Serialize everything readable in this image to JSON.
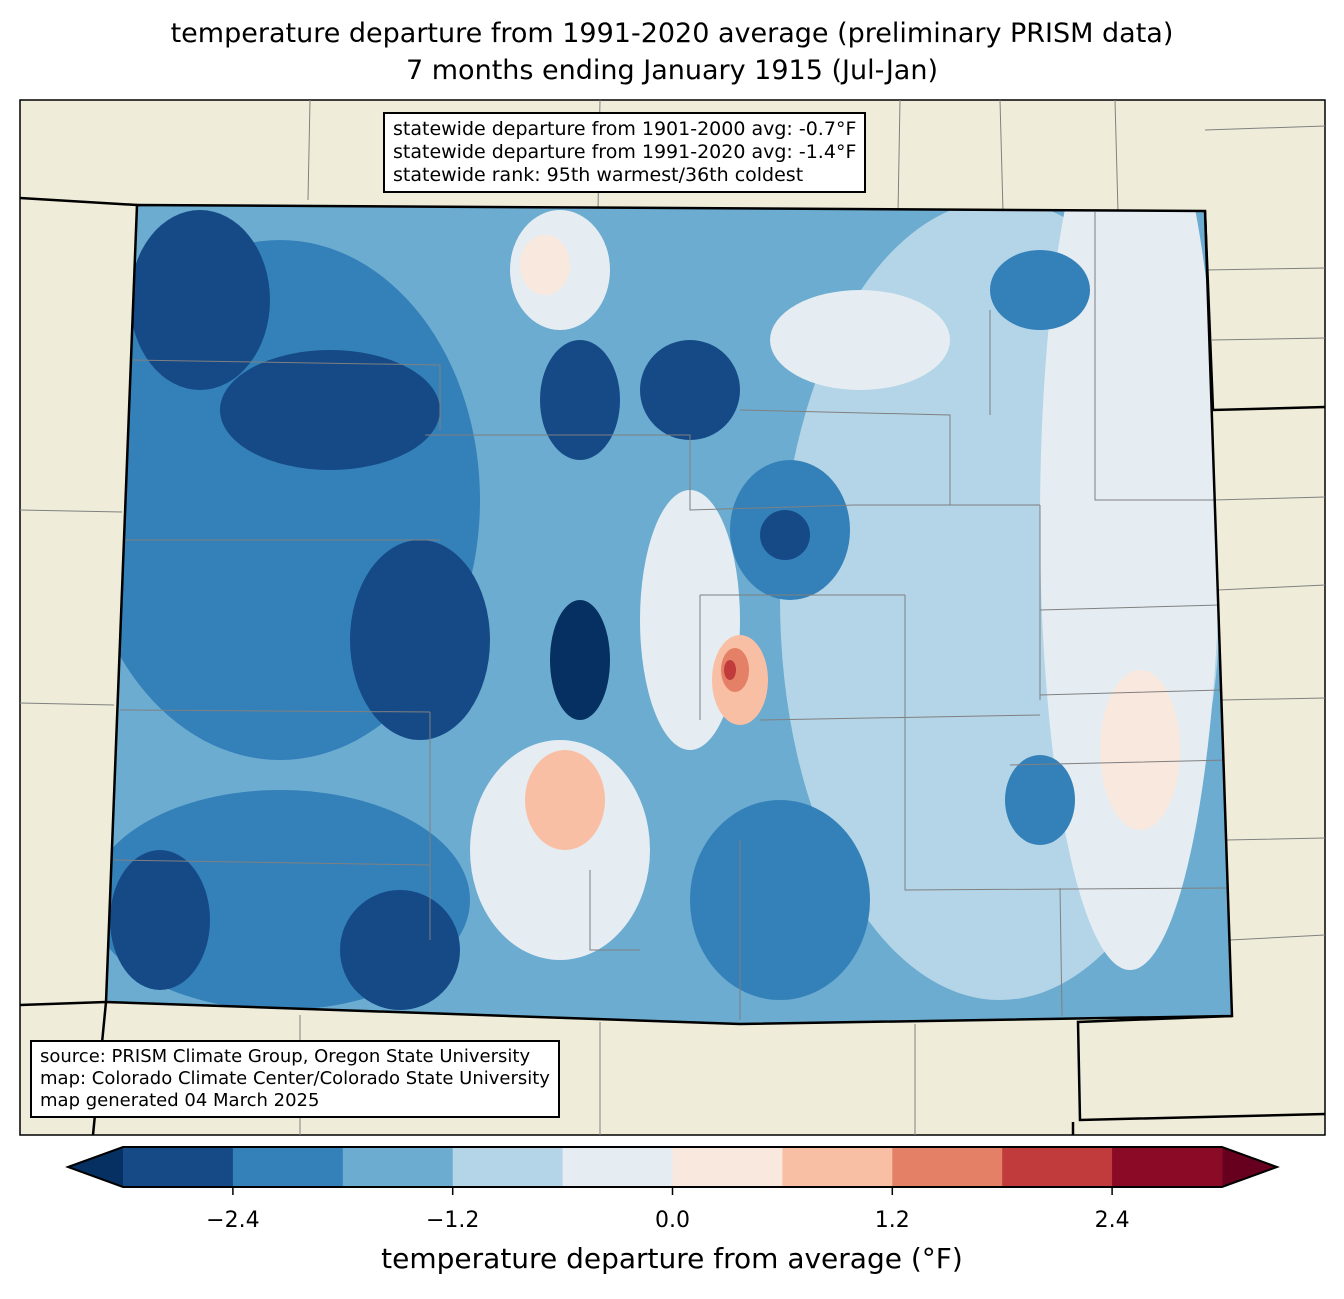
{
  "title": {
    "line1": "temperature departure from 1991-2020 average (preliminary PRISM data)",
    "line2": "7 months ending January 1915 (Jul-Jan)"
  },
  "stats_box": {
    "lines": [
      "statewide departure from 1901-2000 avg: -0.7°F",
      "statewide departure from 1991-2020 avg: -1.4°F",
      "statewide rank: 95th warmest/36th coldest"
    ]
  },
  "source_box": {
    "lines": [
      "source: PRISM Climate Group, Oregon State University",
      "map: Colorado Climate Center/Colorado State University",
      "map generated 04 March 2025"
    ]
  },
  "colorbar": {
    "label": "temperature departure from average (°F)",
    "levels": [
      -3.0,
      -2.4,
      -1.8,
      -1.2,
      -0.6,
      0.0,
      0.6,
      1.2,
      1.8,
      2.4,
      3.0
    ],
    "ticks": [
      "−2.4",
      "−1.2",
      "0.0",
      "1.2",
      "2.4"
    ],
    "colors": [
      "#154a86",
      "#3480b9",
      "#6bacd0",
      "#b3d5e7",
      "#e5edf3",
      "#f9e8dd",
      "#f9bfa4",
      "#e48066",
      "#c13a3c",
      "#8b0b26"
    ],
    "extend_low_color": "#053061",
    "extend_high_color": "#67001f"
  },
  "map_colors": {
    "land": "#efedda",
    "county_lines": "#808080"
  }
}
